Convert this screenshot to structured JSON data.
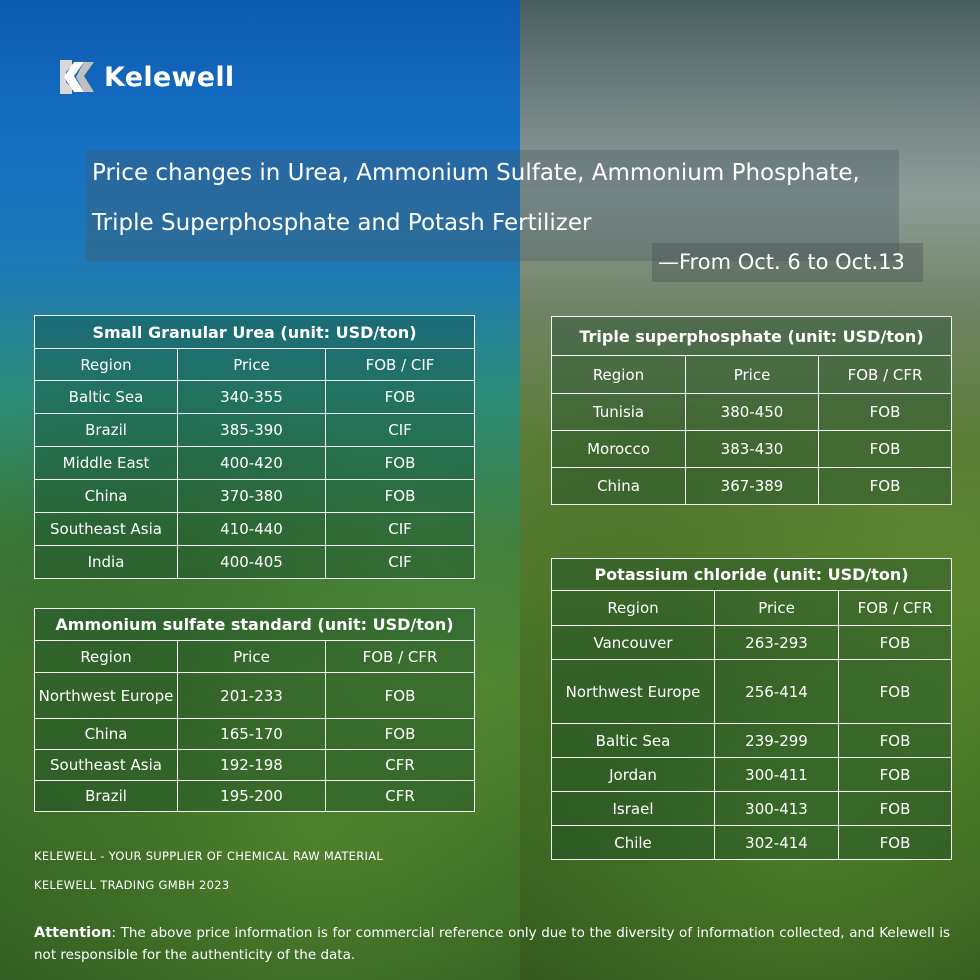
{
  "brand": {
    "name": "Kelewell"
  },
  "headline": {
    "line1": "Price changes in Urea, Ammonium Sulfate, Ammonium Phosphate,",
    "line2": "Triple Superphosphate and Potash Fertilizer",
    "date_range": "—From Oct. 6 to Oct.13"
  },
  "tables": {
    "urea": {
      "title": "Small Granular Urea (unit: USD/ton)",
      "headers": [
        "Region",
        "Price",
        "FOB / CIF"
      ],
      "rows": [
        [
          "Baltic Sea",
          "340-355",
          "FOB"
        ],
        [
          "Brazil",
          "385-390",
          "CIF"
        ],
        [
          "Middle East",
          "400-420",
          "FOB"
        ],
        [
          "China",
          "370-380",
          "FOB"
        ],
        [
          "Southeast Asia",
          "410-440",
          "CIF"
        ],
        [
          "India",
          "400-405",
          "CIF"
        ]
      ]
    },
    "ammonium_sulfate": {
      "title": "Ammonium sulfate standard (unit: USD/ton)",
      "headers": [
        "Region",
        "Price",
        "FOB / CFR"
      ],
      "rows": [
        [
          "Northwest Europe",
          "201-233",
          "FOB"
        ],
        [
          "China",
          "165-170",
          "FOB"
        ],
        [
          "Southeast Asia",
          "192-198",
          "CFR"
        ],
        [
          "Brazil",
          "195-200",
          "CFR"
        ]
      ]
    },
    "triple_superphosphate": {
      "title": "Triple superphosphate (unit: USD/ton)",
      "headers": [
        "Region",
        "Price",
        "FOB / CFR"
      ],
      "rows": [
        [
          "Tunisia",
          "380-450",
          "FOB"
        ],
        [
          "Morocco",
          "383-430",
          "FOB"
        ],
        [
          "China",
          "367-389",
          "FOB"
        ]
      ]
    },
    "potassium_chloride": {
      "title": "Potassium chloride (unit: USD/ton)",
      "headers": [
        "Region",
        "Price",
        "FOB / CFR"
      ],
      "rows": [
        [
          "Vancouver",
          "263-293",
          "FOB"
        ],
        [
          "Northwest Europe",
          "256-414",
          "FOB"
        ],
        [
          "Baltic Sea",
          "239-299",
          "FOB"
        ],
        [
          "Jordan",
          "300-411",
          "FOB"
        ],
        [
          "Israel",
          "300-413",
          "FOB"
        ],
        [
          "Chile",
          "302-414",
          "FOB"
        ]
      ]
    }
  },
  "footer": {
    "tagline": "KELEWELL -  YOUR SUPPLIER OF CHEMICAL RAW MATERIAL",
    "company": "KELEWELL TRADING GMBH 2023",
    "attention_label": "Attention",
    "attention_text": ": The above price information is for commercial reference only due to the diversity of information collected, and Kelewell is not responsible for the authenticity of the data."
  },
  "colors": {
    "sky_blue": "#1670c4",
    "field_green": "#4a7d2f",
    "text": "#ffffff"
  }
}
